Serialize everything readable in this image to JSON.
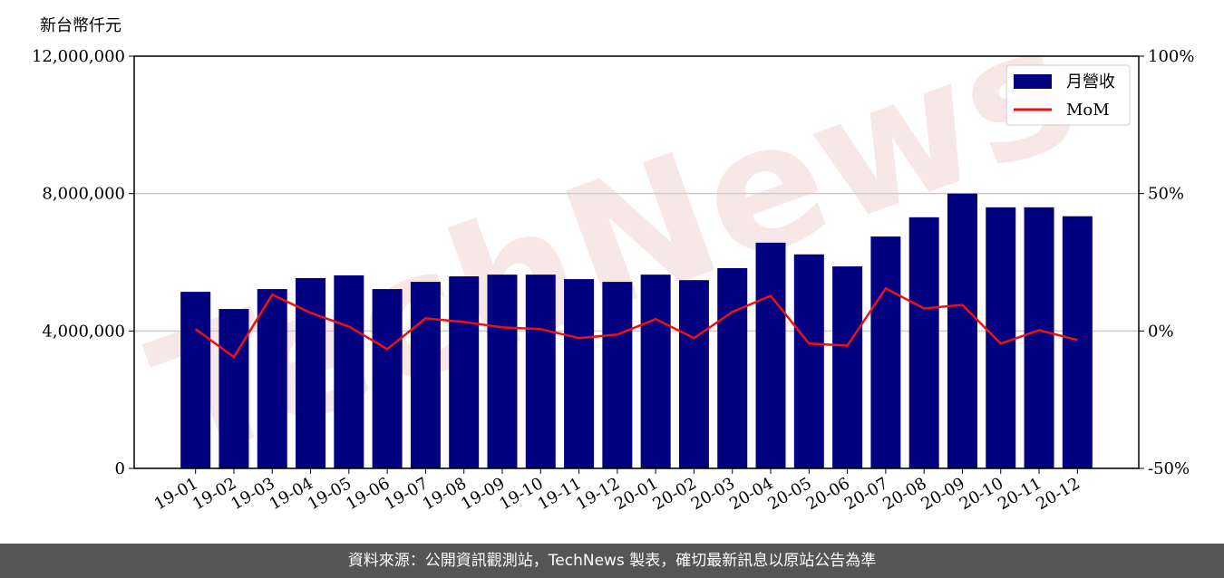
{
  "chart_data": {
    "type": "bar",
    "watermark": "TechNews",
    "y_label": "新台幣仟元",
    "categories": [
      "19-01",
      "19-02",
      "19-03",
      "19-04",
      "19-05",
      "19-06",
      "19-07",
      "19-08",
      "19-09",
      "19-10",
      "19-11",
      "19-12",
      "20-01",
      "20-02",
      "20-03",
      "20-04",
      "20-05",
      "20-06",
      "20-07",
      "20-08",
      "20-09",
      "20-10",
      "20-11",
      "20-12"
    ],
    "series": [
      {
        "name": "月營收",
        "type": "bar",
        "color": "#000080",
        "values": [
          5140000,
          4640000,
          5220000,
          5540000,
          5620000,
          5220000,
          5430000,
          5590000,
          5640000,
          5640000,
          5510000,
          5430000,
          5640000,
          5480000,
          5830000,
          6570000,
          6230000,
          5880000,
          6750000,
          7310000,
          8000000,
          7600000,
          7600000,
          7340000
        ]
      },
      {
        "name": "MoM",
        "type": "line",
        "axis": "y2",
        "color": "#ee1111",
        "values": [
          0.7,
          -9.5,
          13.2,
          6.6,
          1.6,
          -6.6,
          4.6,
          3.3,
          1.3,
          0.7,
          -2.6,
          -1.3,
          4.3,
          -2.6,
          6.9,
          12.8,
          -4.6,
          -5.3,
          15.5,
          8.2,
          9.5,
          -4.6,
          0.3,
          -3.3
        ]
      }
    ],
    "ylim": [
      0,
      12000000
    ],
    "yticks": [
      {
        "value": 0,
        "label": "0"
      },
      {
        "value": 4000000,
        "label": "4,000,000"
      },
      {
        "value": 8000000,
        "label": "8,000,000"
      },
      {
        "value": 12000000,
        "label": "12,000,000"
      }
    ],
    "y2lim": [
      -50,
      100
    ],
    "y2ticks": [
      {
        "value": -50,
        "label": "-50%"
      },
      {
        "value": 0,
        "label": "0%"
      },
      {
        "value": 50,
        "label": "50%"
      },
      {
        "value": 100,
        "label": "100%"
      }
    ],
    "grid": true,
    "legend": "upper right"
  },
  "footer": "資料來源：公開資訊觀測站，TechNews 製表，確切最新訊息以原站公告為準"
}
